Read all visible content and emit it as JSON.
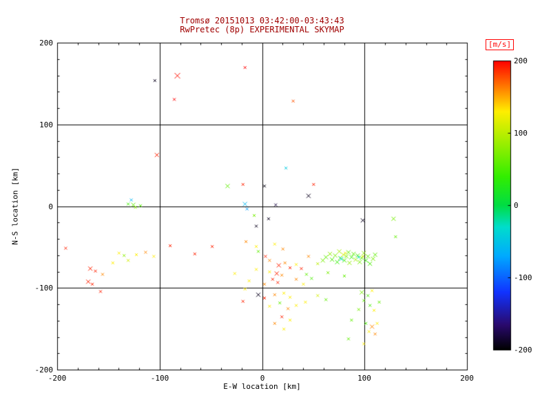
{
  "chart_data": {
    "type": "scatter",
    "marker": "x",
    "title": "Tromsø 20151013 03:42:00-03:43:43",
    "subtitle": "RwPretec (8p) EXPERIMENTAL SKYMAP",
    "title_color": "#a00000",
    "xlabel": "E-W location [km]",
    "ylabel": "N-S location [km]",
    "xlim": [
      -200,
      200
    ],
    "ylim": [
      -200,
      200
    ],
    "xticks": [
      -200,
      -100,
      0,
      100,
      200
    ],
    "yticks": [
      -200,
      -100,
      0,
      100,
      200
    ],
    "minor_tick_interval": 20,
    "grid": true,
    "background": "#ffffff",
    "axis_color": "#000000",
    "colorbar": {
      "label": "[m/s]",
      "label_color": "#ff0000",
      "ticks": [
        200,
        100,
        0,
        -100,
        -200
      ],
      "vmin": -200,
      "vmax": 200,
      "stops": [
        {
          "v": -200,
          "c": "#000000"
        },
        {
          "v": -165,
          "c": "#2a0a6e"
        },
        {
          "v": -120,
          "c": "#1133ff"
        },
        {
          "v": -70,
          "c": "#00aaff"
        },
        {
          "v": -30,
          "c": "#00ddcc"
        },
        {
          "v": 0,
          "c": "#00dd44"
        },
        {
          "v": 40,
          "c": "#33ee00"
        },
        {
          "v": 100,
          "c": "#bbee00"
        },
        {
          "v": 130,
          "c": "#ffee00"
        },
        {
          "v": 160,
          "c": "#ff8800"
        },
        {
          "v": 200,
          "c": "#ff0000"
        }
      ]
    },
    "point_format": [
      "x_km",
      "y_km",
      "velocity_ms",
      "marker_halfsize_px"
    ],
    "points": [
      [
        -105,
        154,
        -190,
        2
      ],
      [
        -83,
        160,
        195,
        4
      ],
      [
        -86,
        131,
        200,
        2
      ],
      [
        -17,
        170,
        200,
        2
      ],
      [
        30,
        129,
        175,
        2
      ],
      [
        -103,
        63,
        190,
        3
      ],
      [
        23,
        47,
        -45,
        2
      ],
      [
        50,
        27,
        190,
        2
      ],
      [
        -34,
        25,
        60,
        3
      ],
      [
        -19,
        27,
        190,
        2
      ],
      [
        2,
        25,
        -195,
        2
      ],
      [
        -128,
        8,
        -60,
        2
      ],
      [
        -126,
        2,
        60,
        3
      ],
      [
        -131,
        3,
        45,
        2
      ],
      [
        -124,
        -1,
        75,
        2
      ],
      [
        -119,
        1,
        55,
        2
      ],
      [
        -17,
        3,
        -60,
        3
      ],
      [
        -15,
        -3,
        -75,
        2
      ],
      [
        13,
        2,
        -180,
        2
      ],
      [
        45,
        13,
        -190,
        3
      ],
      [
        -8,
        -11,
        70,
        2
      ],
      [
        6,
        -15,
        -190,
        2
      ],
      [
        98,
        -17,
        -190,
        3
      ],
      [
        128,
        -15,
        70,
        3
      ],
      [
        130,
        -37,
        60,
        2
      ],
      [
        -6,
        -24,
        -190,
        2
      ],
      [
        -192,
        -51,
        190,
        2
      ],
      [
        -168,
        -76,
        190,
        3
      ],
      [
        -163,
        -79,
        190,
        2
      ],
      [
        -170,
        -92,
        190,
        3
      ],
      [
        -166,
        -95,
        190,
        2
      ],
      [
        -158,
        -104,
        190,
        2
      ],
      [
        -156,
        -83,
        160,
        2
      ],
      [
        -146,
        -69,
        130,
        2
      ],
      [
        -140,
        -57,
        130,
        2
      ],
      [
        -135,
        -60,
        80,
        2
      ],
      [
        -131,
        -66,
        110,
        2
      ],
      [
        -123,
        -59,
        130,
        2
      ],
      [
        -114,
        -56,
        160,
        2
      ],
      [
        -106,
        -61,
        130,
        2
      ],
      [
        -90,
        -48,
        190,
        2
      ],
      [
        -66,
        -58,
        190,
        2
      ],
      [
        -49,
        -49,
        190,
        2
      ],
      [
        -16,
        -43,
        160,
        2
      ],
      [
        -6,
        -49,
        130,
        2
      ],
      [
        -4,
        -55,
        60,
        2
      ],
      [
        3,
        -61,
        190,
        2
      ],
      [
        7,
        -66,
        160,
        2
      ],
      [
        12,
        -46,
        130,
        2
      ],
      [
        20,
        -52,
        160,
        2
      ],
      [
        16,
        -72,
        190,
        3
      ],
      [
        22,
        -69,
        160,
        2
      ],
      [
        27,
        -75,
        190,
        2
      ],
      [
        14,
        -82,
        190,
        3
      ],
      [
        19,
        -84,
        160,
        2
      ],
      [
        7,
        -80,
        130,
        2
      ],
      [
        -6,
        -77,
        130,
        2
      ],
      [
        33,
        -71,
        130,
        2
      ],
      [
        38,
        -76,
        190,
        2
      ],
      [
        45,
        -61,
        160,
        2
      ],
      [
        54,
        -70,
        100,
        2
      ],
      [
        59,
        -66,
        70,
        3
      ],
      [
        62,
        -62,
        60,
        3
      ],
      [
        66,
        -58,
        80,
        3
      ],
      [
        68,
        -65,
        50,
        3
      ],
      [
        71,
        -60,
        70,
        3
      ],
      [
        73,
        -68,
        40,
        3
      ],
      [
        75,
        -55,
        90,
        3
      ],
      [
        76,
        -63,
        60,
        3
      ],
      [
        77,
        -64,
        -35,
        3
      ],
      [
        79,
        -59,
        110,
        3
      ],
      [
        80,
        -66,
        50,
        3
      ],
      [
        81,
        -57,
        120,
        2
      ],
      [
        82,
        -61,
        70,
        3
      ],
      [
        84,
        -56,
        60,
        3
      ],
      [
        85,
        -69,
        80,
        3
      ],
      [
        87,
        -62,
        40,
        3
      ],
      [
        89,
        -58,
        60,
        3
      ],
      [
        91,
        -65,
        90,
        3
      ],
      [
        93,
        -60,
        50,
        3
      ],
      [
        94,
        -62,
        -30,
        2
      ],
      [
        95,
        -68,
        70,
        3
      ],
      [
        97,
        -63,
        60,
        3
      ],
      [
        98,
        -61,
        115,
        2
      ],
      [
        99,
        -57,
        80,
        3
      ],
      [
        101,
        -66,
        40,
        3
      ],
      [
        103,
        -61,
        60,
        3
      ],
      [
        105,
        -70,
        50,
        3
      ],
      [
        108,
        -64,
        70,
        3
      ],
      [
        110,
        -59,
        60,
        3
      ],
      [
        43,
        -83,
        60,
        2
      ],
      [
        48,
        -88,
        50,
        2
      ],
      [
        64,
        -81,
        70,
        2
      ],
      [
        80,
        -85,
        60,
        2
      ],
      [
        10,
        -89,
        190,
        2
      ],
      [
        15,
        -93,
        190,
        2
      ],
      [
        2,
        -95,
        160,
        2
      ],
      [
        -13,
        -91,
        130,
        2
      ],
      [
        -27,
        -82,
        130,
        2
      ],
      [
        33,
        -89,
        160,
        2
      ],
      [
        40,
        -95,
        130,
        2
      ],
      [
        -17,
        -101,
        130,
        2
      ],
      [
        -4,
        -108,
        -190,
        3
      ],
      [
        2,
        -112,
        190,
        2
      ],
      [
        12,
        -108,
        160,
        2
      ],
      [
        21,
        -106,
        130,
        2
      ],
      [
        27,
        -111,
        130,
        2
      ],
      [
        17,
        -118,
        60,
        2
      ],
      [
        7,
        -122,
        130,
        2
      ],
      [
        25,
        -125,
        160,
        2
      ],
      [
        33,
        -121,
        130,
        2
      ],
      [
        42,
        -117,
        130,
        2
      ],
      [
        54,
        -109,
        110,
        2
      ],
      [
        62,
        -114,
        60,
        2
      ],
      [
        97,
        -105,
        70,
        3
      ],
      [
        103,
        -109,
        50,
        2
      ],
      [
        107,
        -103,
        130,
        2
      ],
      [
        99,
        -115,
        60,
        2
      ],
      [
        105,
        -121,
        50,
        2
      ],
      [
        94,
        -126,
        70,
        2
      ],
      [
        109,
        -127,
        130,
        2
      ],
      [
        114,
        -117,
        60,
        2
      ],
      [
        -19,
        -116,
        190,
        2
      ],
      [
        87,
        -139,
        60,
        2
      ],
      [
        101,
        -143,
        50,
        2
      ],
      [
        107,
        -147,
        160,
        3
      ],
      [
        112,
        -143,
        130,
        2
      ],
      [
        104,
        -153,
        130,
        2
      ],
      [
        110,
        -156,
        160,
        2
      ],
      [
        27,
        -139,
        130,
        2
      ],
      [
        19,
        -135,
        190,
        2
      ],
      [
        12,
        -143,
        160,
        2
      ],
      [
        21,
        -150,
        130,
        2
      ],
      [
        84,
        -162,
        60,
        2
      ],
      [
        99,
        -168,
        130,
        2
      ]
    ]
  }
}
